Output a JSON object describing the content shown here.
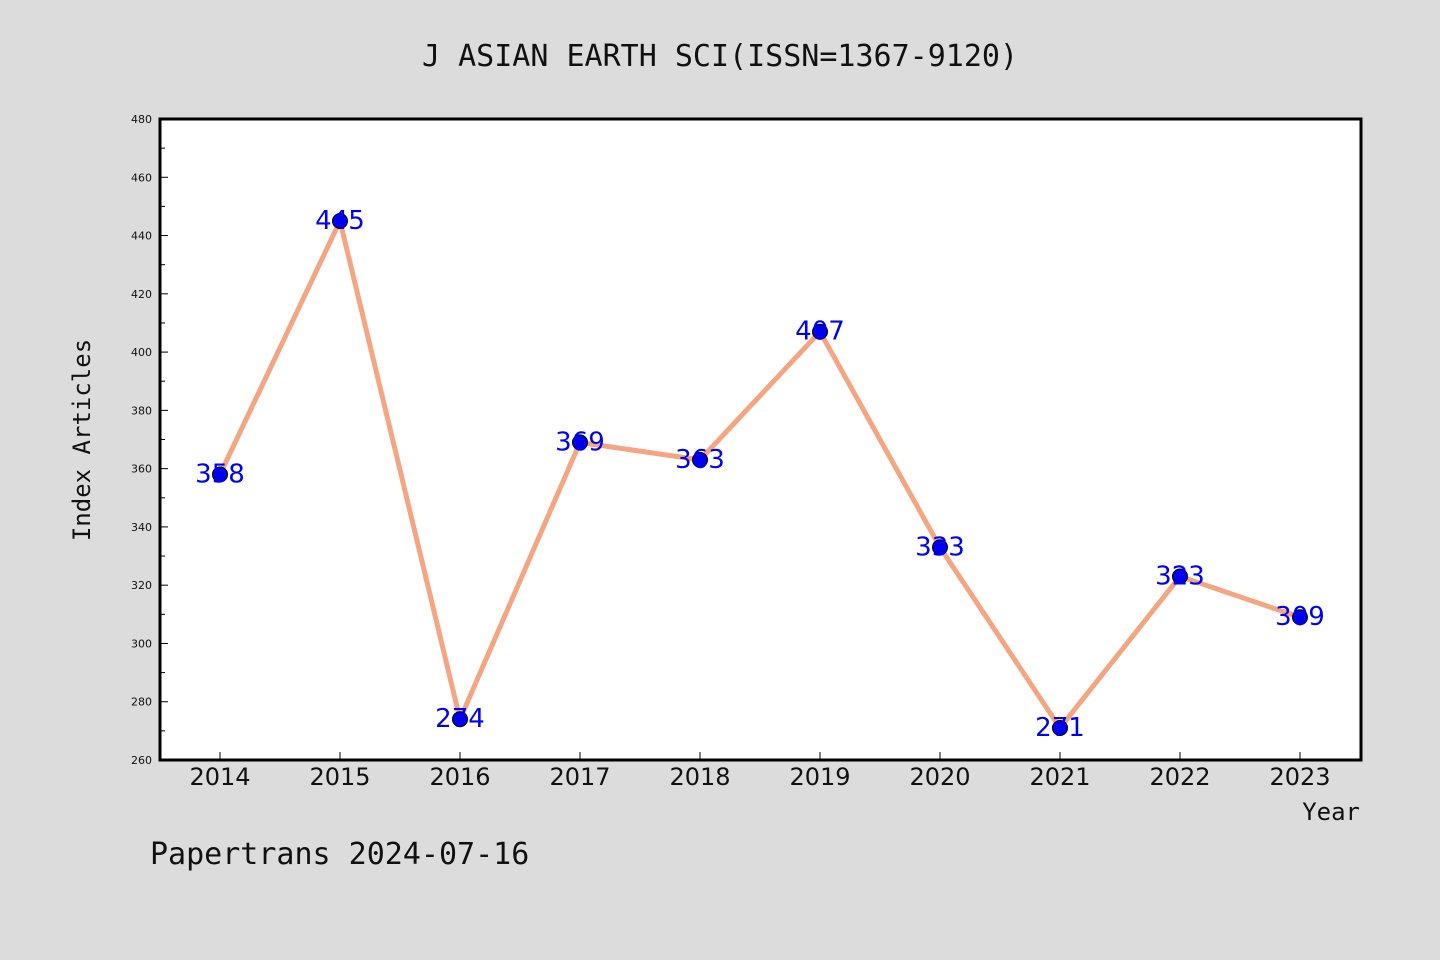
{
  "chart_data": {
    "type": "line",
    "title": "J ASIAN EARTH SCI(ISSN=1367-9120)",
    "xlabel": "Year",
    "ylabel": "Index Articles",
    "categories": [
      "2014",
      "2015",
      "2016",
      "2017",
      "2018",
      "2019",
      "2020",
      "2021",
      "2022",
      "2023"
    ],
    "series": [
      {
        "values": [
          358,
          445,
          274,
          369,
          363,
          407,
          333,
          271,
          323,
          309
        ]
      }
    ],
    "data_labels": [
      "358",
      "445",
      "274",
      "369",
      "363",
      "407",
      "333",
      "271",
      "323",
      "309"
    ],
    "ylim": [
      260,
      480
    ],
    "yticks": [
      "260",
      "280",
      "300",
      "320",
      "340",
      "360",
      "380",
      "400",
      "420",
      "440",
      "460",
      "480"
    ],
    "grid": false,
    "line_color": "#f4a582",
    "marker_color": "#0000ee",
    "label_color": "#0000ee"
  },
  "footer": "Papertrans 2024-07-16"
}
